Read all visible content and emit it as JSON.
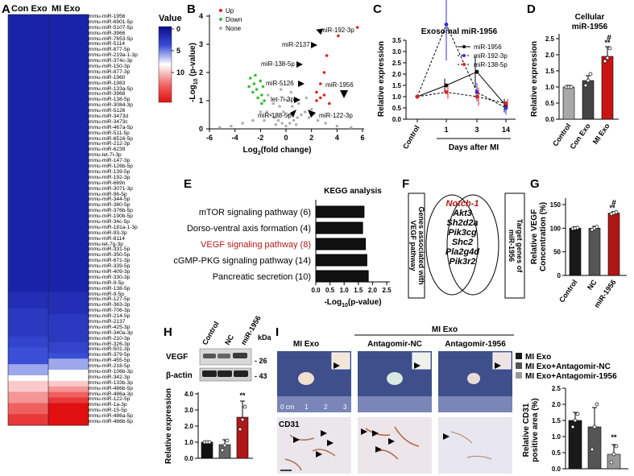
{
  "panels": {
    "A": {
      "letter": "A",
      "columns": [
        "Con Exo",
        "MI Exo"
      ],
      "legend_title": "Value",
      "legend_ticks": [
        "0",
        "5",
        "10"
      ],
      "mirs": [
        "mmu-miR-1956",
        "mmu-miR-6901-5p",
        "mmu-miR-5107-5p",
        "mmu-miR-3966",
        "mmu-miR-7653-5p",
        "mmu-miR-5114",
        "mmu-miR-877-5p",
        "mmu-miR-219a-1-3p",
        "mmu-miR-374c-3p",
        "mmu-miR-150-3p",
        "mmu-miR-877-3p",
        "mmu-miR-1960",
        "mmu-miR-1983",
        "mmu-miR-133a-5p",
        "mmu-miR-3968",
        "mmu-miR-138-5p",
        "mmu-miR-3084-3p",
        "mmu-miR-5126",
        "mmu-miR-3473d",
        "mmu-miR-3473c",
        "mmu-miR-467a-5p",
        "mmu-miR-511-5p",
        "mmu-miR-6516-5p",
        "mmu-miR-212-3p",
        "mmu-miR-6239",
        "mmu-let-7i-3p",
        "mmu-miR-147-3p",
        "mmu-miR-126b-5p",
        "mmu-miR-139-5p",
        "mmu-miR-192-3p",
        "mmu-miR-669n",
        "mmu-miR-3071-3p",
        "mmu-miR-96-5p",
        "mmu-miR-344-5p",
        "mmu-miR-380-5p",
        "mmu-miR-376b-5p",
        "mmu-miR-190b-5p",
        "mmu-miR-34c-5p",
        "mmu-miR-181a-1-3p",
        "mmu-miR-93-3p",
        "mmu-miR-8114",
        "mmu-let-7g-3p",
        "mmu-miR-331-5p",
        "mmu-miR-350-5p",
        "mmu-miR-671-3p",
        "mmu-miR-339-5p",
        "mmu-miR-409-3p",
        "mmu-miR-330-3p",
        "mmu-miR-9-5p",
        "mmu-miR-138-5p",
        "mmu-miR-9-5p",
        "mmu-miR-127-5p",
        "mmu-miR-363-3p",
        "mmu-miR-706-3p",
        "mmu-miR-214-5p",
        "mmu-miR-2137",
        "mmu-miR-425-3p",
        "mmu-miR-340a-3p",
        "mmu-miR-210-3p",
        "mmu-miR-326-3p",
        "mmu-miR-501-3p",
        "mmu-miR-379-5p",
        "mmu-miR-455-5p",
        "mmu-miR-218-5p",
        "mmu-miR-106b-3p",
        "mmu-miR-342-3p",
        "mmu-miR-133b-3p",
        "mmu-miR-486b-5p",
        "mmu-miR-486a-3p",
        "mmu-miR-122-5p",
        "mmu-miR-1a-3p",
        "mmu-miR-15-5p",
        "mmu-miR-486a-5p",
        "mmu-miR-486b-5p"
      ],
      "heat_con": [
        3,
        3,
        3,
        3,
        3,
        3,
        3,
        3,
        3,
        3,
        3,
        3,
        3,
        3,
        3,
        3,
        3,
        3,
        3,
        3,
        3,
        3,
        3,
        3,
        3,
        3,
        3,
        3,
        3,
        3,
        3,
        3,
        3,
        3,
        3,
        3,
        3,
        3,
        3,
        3,
        3,
        3,
        3,
        3,
        3,
        3,
        3,
        3,
        3,
        3,
        3.5,
        3.5,
        3.5,
        4,
        4,
        4,
        4,
        4,
        4.5,
        4.5,
        5,
        5,
        5,
        6,
        6,
        7,
        8,
        8,
        9,
        9,
        10,
        10,
        11,
        11
      ],
      "heat_mi": [
        3,
        3,
        3,
        3,
        3,
        3,
        3,
        3,
        3,
        3,
        3,
        3,
        3,
        3,
        3,
        3,
        3,
        3,
        3,
        3,
        3,
        3,
        3,
        3,
        3,
        3,
        3,
        3,
        3,
        3,
        3,
        3,
        3,
        3,
        3,
        3,
        3,
        3,
        3,
        3,
        3,
        3,
        3,
        3,
        3,
        3,
        3,
        3,
        3,
        3,
        3.5,
        3.5,
        3.5,
        3.5,
        4,
        4,
        4,
        4,
        4,
        4.5,
        4.5,
        5,
        6,
        6,
        7,
        7,
        8,
        9,
        10,
        11,
        12,
        12,
        12,
        12
      ]
    },
    "B": {
      "letter": "B",
      "legend": [
        "Up",
        "Down",
        "None"
      ],
      "labels": [
        "miR-192-3p",
        "miR-2137",
        "miR-138-5p",
        "miR-5126",
        "let-7i-3p",
        "miR-188-5p",
        "miR-122-3p",
        "miR-1956"
      ],
      "xlabel_pre": "Log",
      "xlabel_sub": "2",
      "xlabel_post": "(fold change)",
      "ylabel_pre": "-Log",
      "ylabel_sub": "10",
      "ylabel_post": " (p-value)",
      "xticks": [
        "-6",
        "-4",
        "-2",
        "0",
        "2",
        "4",
        "6"
      ],
      "yticks": [
        "0",
        "1",
        "2",
        "3",
        "4"
      ]
    },
    "C": {
      "letter": "C",
      "title": "Exosomal miR-1956",
      "ylabel": "Relative expression",
      "xlabel": "Days after MI",
      "xcats": [
        "Control",
        "1",
        "3",
        "14"
      ],
      "yticks": [
        "0.0",
        "0.5",
        "1.0",
        "1.5",
        "2.0",
        "2.5",
        "3.0",
        "3.5"
      ],
      "legend": [
        "miR-1956",
        "miR-192-3p",
        "miR-138-5p"
      ]
    },
    "D": {
      "letter": "D",
      "title_line1": "Cellular",
      "title_line2": "miR-1956",
      "ylabel": "Relative expression",
      "cats": [
        "Control",
        "Con Exo",
        "MI Exo"
      ],
      "yticks": [
        "0.0",
        "0.5",
        "1.0",
        "1.5",
        "2.0",
        "2.5"
      ],
      "sig": [
        "**",
        "#"
      ]
    },
    "E": {
      "letter": "E",
      "title": "KEGG analysis",
      "terms": [
        "mTOR signaling pathway (6)",
        "Dorso-ventral axis formation (4)",
        "VEGF signaling pathway (8)",
        "cGMP-PKG signaling pathway (14)",
        "Pancreatic secretion (10)"
      ],
      "xticks": [
        "0.0",
        "0.5",
        "1.0",
        "1.5",
        "2.0",
        "2.5"
      ],
      "xlabel_pre": "-Log",
      "xlabel_sub": "10",
      "xlabel_post": "(p-value)"
    },
    "F": {
      "letter": "F",
      "left_box_line1": "Genes associated with",
      "left_box_line2": "VEGF pathway",
      "right_box_line1": "Target genes of",
      "right_box_line2": "miR-1956",
      "genes": [
        "Notch-1",
        "Akt3",
        "Sh2d2a",
        "Pik3cg",
        "Shc2",
        "Pla2g4d",
        "Pik3r2"
      ]
    },
    "G": {
      "letter": "G",
      "ylabel_line1": "Relative VEGF",
      "ylabel_line2": "Concentration (%)",
      "cats": [
        "Control",
        "NC",
        "miR-1956"
      ],
      "yticks": [
        "0",
        "50",
        "100",
        "150"
      ],
      "sig": [
        "**",
        "#"
      ]
    },
    "H": {
      "letter": "H",
      "lanes": [
        "Control",
        "NC",
        "miR-1956"
      ],
      "kda": "kDa",
      "bands": [
        "VEGF",
        "β-actin"
      ],
      "band_kda": [
        "26",
        "43"
      ],
      "ylabel": "Relative expression",
      "yticks": [
        "0.0",
        "0.5",
        "1.0",
        "1.5",
        "2.0",
        "2.5",
        "3.0",
        "3.5",
        "4.0"
      ],
      "sig": "**"
    },
    "I": {
      "letter": "I",
      "group_header": "MI Exo",
      "cols": [
        "MI Exo",
        "Antagomir-NC",
        "Antagomir-1956"
      ],
      "row_label": "CD31",
      "ruler_units": "0 cm",
      "ruler_nums": [
        "1",
        "2",
        "3"
      ],
      "legend": [
        "MI Exo",
        "MI Exo+Antagomir-NC",
        "MI Exo+Antagomir-1956"
      ],
      "ylabel_line1": "Relative CD31",
      "ylabel_line2": "positive area (%)",
      "yticks": [
        "0.0",
        "0.5",
        "1.0",
        "1.5",
        "2.0",
        "2.5"
      ],
      "sig": "**"
    }
  },
  "chart_data": [
    {
      "type": "heatmap",
      "title": "",
      "columns": [
        "Con Exo",
        "MI Exo"
      ],
      "legend_title": "Value",
      "range": [
        0,
        12
      ]
    },
    {
      "type": "scatter",
      "title": "",
      "xlabel": "Log2(fold change)",
      "ylabel": "-Log10 (p-value)",
      "xlim": [
        -6,
        6
      ],
      "ylim": [
        0,
        4
      ],
      "series": [
        {
          "name": "Up",
          "points": [
            [
              5.6,
              3.6
            ],
            [
              4.1,
              3.3
            ],
            [
              3.2,
              2.6
            ],
            [
              3.0,
              2.0
            ],
            [
              2.7,
              1.6
            ],
            [
              2.4,
              1.3
            ],
            [
              2.7,
              1.1
            ],
            [
              3.0,
              1.2
            ],
            [
              3.4,
              0.9
            ],
            [
              2.4,
              1.0
            ]
          ]
        },
        {
          "name": "Down",
          "points": [
            [
              -2.0,
              1.7
            ],
            [
              -2.5,
              1.6
            ],
            [
              -2.8,
              1.8
            ],
            [
              -2.3,
              1.4
            ],
            [
              -2.6,
              1.3
            ],
            [
              -1.9,
              1.2
            ],
            [
              -2.2,
              1.1
            ],
            [
              -2.9,
              1.5
            ],
            [
              -1.8,
              1.5
            ],
            [
              -2.4,
              1.9
            ],
            [
              -1.7,
              1.0
            ],
            [
              -1.9,
              0.9
            ]
          ]
        },
        {
          "name": "None",
          "points": [
            [
              0,
              0.1
            ],
            [
              0.3,
              0.2
            ],
            [
              -0.3,
              0.2
            ],
            [
              0.6,
              0.3
            ],
            [
              -0.6,
              0.3
            ],
            [
              0.9,
              0.4
            ],
            [
              -0.9,
              0.4
            ],
            [
              1.2,
              0.5
            ],
            [
              -1.2,
              0.5
            ],
            [
              1.5,
              0.6
            ],
            [
              -1.5,
              0.6
            ],
            [
              0.2,
              0.5
            ],
            [
              -0.2,
              0.6
            ],
            [
              0.5,
              0.8
            ],
            [
              -0.5,
              0.8
            ],
            [
              1.0,
              0.9
            ],
            [
              -1.0,
              0.9
            ],
            [
              0.1,
              1.0
            ],
            [
              1.6,
              1.1
            ],
            [
              -1.4,
              1.2
            ],
            [
              0.4,
              1.3
            ],
            [
              -0.4,
              1.4
            ],
            [
              2.0,
              0.7
            ],
            [
              -2.0,
              0.6
            ],
            [
              2.5,
              0.3
            ],
            [
              -2.6,
              0.3
            ],
            [
              3.1,
              0.2
            ],
            [
              -3.4,
              0.2
            ],
            [
              4.0,
              0.1
            ],
            [
              -4.3,
              0.1
            ],
            [
              -5.2,
              0.05
            ],
            [
              5.1,
              0.05
            ],
            [
              1.8,
              0.4
            ],
            [
              -1.7,
              0.3
            ],
            [
              0.8,
              0.15
            ],
            [
              -0.8,
              0.15
            ]
          ]
        }
      ]
    },
    {
      "type": "line",
      "title": "Exosomal miR-1956",
      "categories": [
        "Control",
        "1",
        "3",
        "14"
      ],
      "ylabel": "Relative expression",
      "ylim": [
        0,
        3.5
      ],
      "series": [
        {
          "name": "miR-1956",
          "values": [
            1.0,
            1.5,
            2.1,
            0.6
          ],
          "err": [
            0,
            0.3,
            0.7,
            0.3
          ]
        },
        {
          "name": "miR-192-3p",
          "values": [
            1.0,
            4.2,
            1.2,
            0.5
          ],
          "err": [
            0,
            1.6,
            0.4,
            0.3
          ]
        },
        {
          "name": "miR-138-5p",
          "values": [
            1.0,
            1.2,
            1.0,
            0.7
          ],
          "err": [
            0,
            0.3,
            0.4,
            0.2
          ]
        }
      ]
    },
    {
      "type": "bar",
      "title": "Cellular miR-1956",
      "categories": [
        "Control",
        "Con Exo",
        "MI Exo"
      ],
      "values": [
        1.0,
        1.2,
        1.95
      ],
      "err": [
        0.05,
        0.15,
        0.3
      ],
      "ylabel": "Relative expression",
      "ylim": [
        0,
        2.5
      ]
    },
    {
      "type": "bar",
      "title": "KEGG analysis",
      "categories": [
        "mTOR signaling pathway (6)",
        "Dorso-ventral axis formation (4)",
        "VEGF signaling pathway (8)",
        "cGMP-PKG signaling pathway (14)",
        "Pancreatic secretion (10)"
      ],
      "values": [
        1.7,
        1.65,
        1.75,
        1.8,
        1.85
      ],
      "xlabel": "-Log10(p-value)",
      "xlim": [
        0,
        2.5
      ]
    },
    {
      "type": "bar",
      "title": "",
      "categories": [
        "Control",
        "NC",
        "miR-1956"
      ],
      "values": [
        100,
        100,
        132
      ],
      "err": [
        3,
        4,
        3
      ],
      "ylabel": "Relative VEGF Concentration (%)",
      "ylim": [
        0,
        150
      ]
    },
    {
      "type": "bar",
      "title": "",
      "categories": [
        "Control",
        "NC",
        "miR-1956"
      ],
      "values": [
        1.0,
        0.85,
        2.55
      ],
      "err": [
        0.05,
        0.3,
        1.0
      ],
      "ylabel": "Relative expression",
      "ylim": [
        0,
        4.0
      ]
    },
    {
      "type": "bar",
      "title": "",
      "categories": [
        "MI Exo",
        "MI Exo+Antagomir-NC",
        "MI Exo+Antagomir-1956"
      ],
      "values": [
        1.5,
        1.3,
        0.45
      ],
      "err": [
        0.25,
        0.6,
        0.3
      ],
      "ylabel": "Relative CD31 positive area (%)",
      "ylim": [
        0,
        2.5
      ]
    }
  ]
}
